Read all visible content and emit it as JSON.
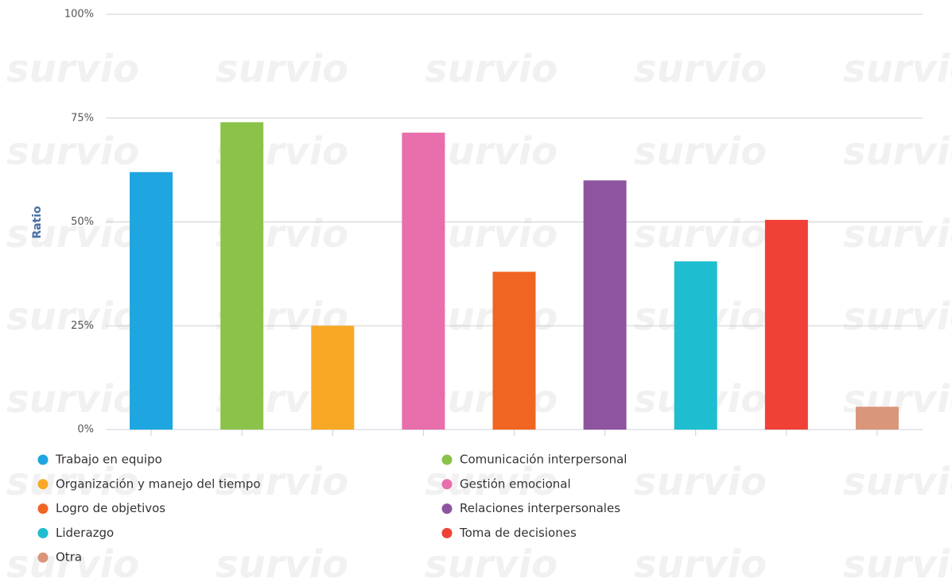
{
  "chart_data": {
    "type": "bar",
    "watermark": "survio",
    "ylabel": "Ratio",
    "categories": [
      "Trabajo en equipo",
      "Comunicación interpersonal",
      "Organización y manejo del tiempo",
      "Gestión emocional",
      "Logro de objetivos",
      "Relaciones interpersonales",
      "Liderazgo",
      "Toma de decisiones",
      "Otra"
    ],
    "values": [
      62,
      74,
      25,
      71.5,
      38,
      60,
      40.5,
      50.5,
      5.5
    ],
    "colors": [
      "#1fa6e0",
      "#8bc34a",
      "#f9a825",
      "#e86fab",
      "#f06522",
      "#8e54a0",
      "#1ebed0",
      "#ef4136",
      "#d9967a"
    ],
    "ylim": [
      0,
      100
    ],
    "yticks": [
      {
        "value": 0,
        "label": "0%"
      },
      {
        "value": 25,
        "label": "25%"
      },
      {
        "value": 50,
        "label": "50%"
      },
      {
        "value": 75,
        "label": "75%"
      },
      {
        "value": 100,
        "label": "100%"
      }
    ],
    "grid": true,
    "legend": "bottom"
  }
}
